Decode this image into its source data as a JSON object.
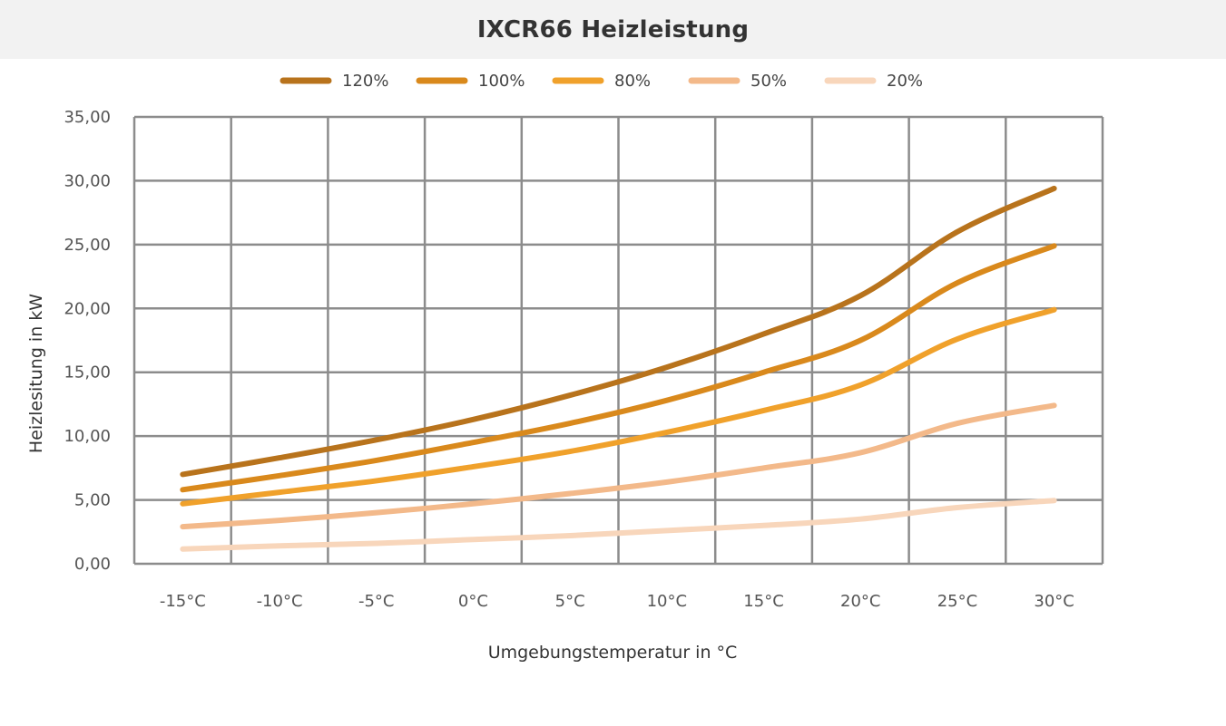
{
  "chart_data": {
    "type": "line",
    "title": "IXCR66 Heizleistung",
    "xlabel": "Umgebungstemperatur in °C",
    "ylabel": "Heizlesitung in kW",
    "categories": [
      "-15°C",
      "-10°C",
      "-5°C",
      "0°C",
      "5°C",
      "10°C",
      "15°C",
      "20°C",
      "25°C",
      "30°C"
    ],
    "ylim": [
      0,
      35
    ],
    "yticks": [
      "0,00",
      "5,00",
      "10,00",
      "15,00",
      "20,00",
      "25,00",
      "30,00",
      "35,00"
    ],
    "grid": true,
    "legend_position": "top",
    "series": [
      {
        "name": "120%",
        "color": "#b8731c",
        "values": [
          7.0,
          8.3,
          9.7,
          11.3,
          13.2,
          15.4,
          18.0,
          21.0,
          26.0,
          29.4
        ]
      },
      {
        "name": "100%",
        "color": "#d9891c",
        "values": [
          5.8,
          6.9,
          8.1,
          9.5,
          11.0,
          12.8,
          15.0,
          17.5,
          22.0,
          24.9
        ]
      },
      {
        "name": "80%",
        "color": "#f0a12b",
        "values": [
          4.7,
          5.6,
          6.5,
          7.6,
          8.8,
          10.3,
          12.0,
          14.0,
          17.6,
          19.9
        ]
      },
      {
        "name": "50%",
        "color": "#f3b98a",
        "values": [
          2.9,
          3.4,
          4.0,
          4.7,
          5.5,
          6.4,
          7.5,
          8.7,
          11.0,
          12.4
        ]
      },
      {
        "name": "20%",
        "color": "#f8d6bb",
        "values": [
          1.15,
          1.4,
          1.6,
          1.9,
          2.2,
          2.6,
          3.0,
          3.5,
          4.4,
          4.95
        ]
      }
    ]
  }
}
